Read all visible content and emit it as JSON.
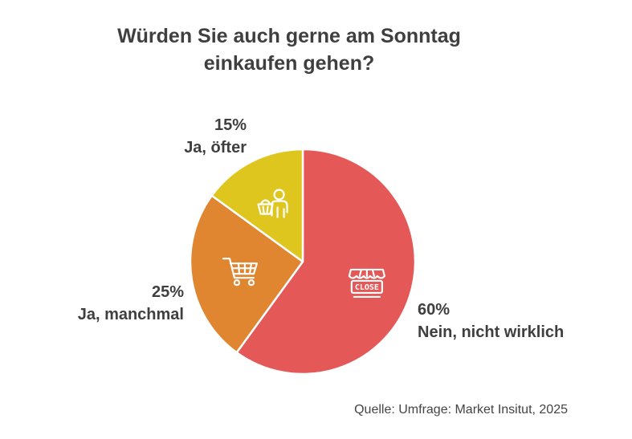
{
  "title_line1": "Würden Sie auch gerne am Sonntag",
  "title_line2": "einkaufen gehen?",
  "source": "Quelle: Umfrage: Market Insitut, 2025",
  "chart_data": {
    "type": "pie",
    "title": "Würden Sie auch gerne am Sonntag einkaufen gehen?",
    "slices": [
      {
        "label": "Nein, nicht wirklich",
        "value": 60,
        "value_label": "60%",
        "color": "#e55858",
        "icon": "closed-shop-icon"
      },
      {
        "label": "Ja, manchmal",
        "value": 25,
        "value_label": "25%",
        "color": "#e08530",
        "icon": "shopping-cart-icon"
      },
      {
        "label": "Ja, öfter",
        "value": 15,
        "value_label": "15%",
        "color": "#dfc61f",
        "icon": "shopper-basket-icon"
      }
    ],
    "start_angle": "12 o'clock",
    "direction": "clockwise"
  }
}
